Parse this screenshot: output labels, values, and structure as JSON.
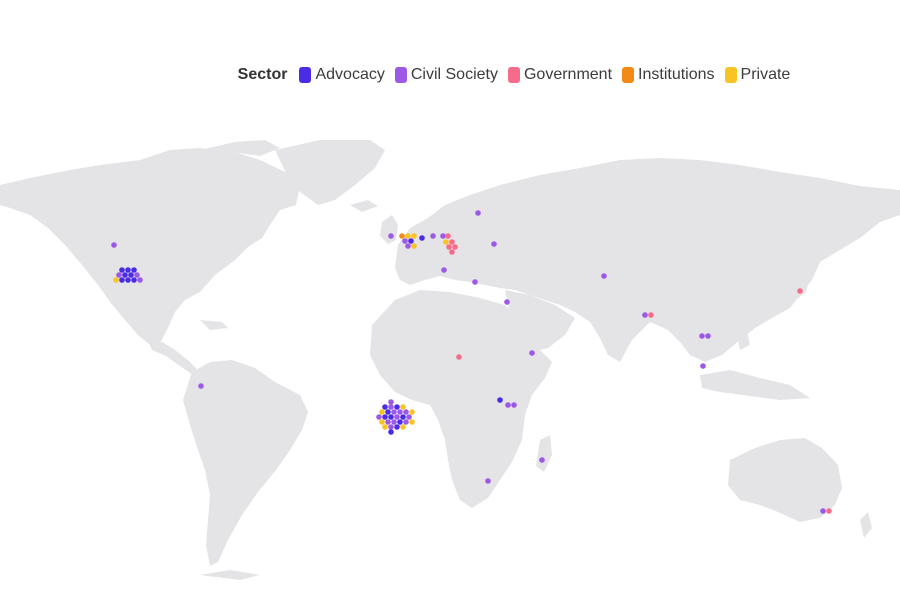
{
  "legend": {
    "title": "Sector",
    "items": [
      {
        "key": "advocacy",
        "label": "Advocacy",
        "color": "#4b2be6"
      },
      {
        "key": "civil",
        "label": "Civil Society",
        "color": "#9b59e6"
      },
      {
        "key": "government",
        "label": "Government",
        "color": "#f76b8a"
      },
      {
        "key": "institutions",
        "label": "Institutions",
        "color": "#f28a15"
      },
      {
        "key": "private",
        "label": "Private",
        "color": "#f7c325"
      }
    ]
  },
  "map": {
    "land_color": "#e4e4e7",
    "background": "#ffffff"
  }
}
